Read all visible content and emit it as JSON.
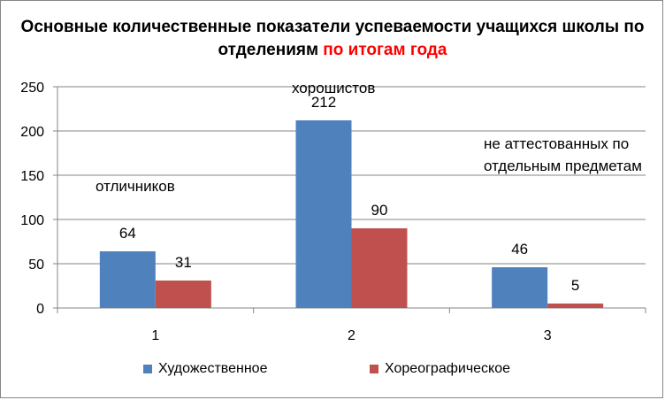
{
  "chart_data": {
    "type": "bar",
    "title_main": "Основные количественные показатели успеваемости учащихся школы по отделениям",
    "title_accent": "по итогам года",
    "categories": [
      "1",
      "2",
      "3"
    ],
    "series": [
      {
        "name": "Художественное",
        "values": [
          64,
          212,
          46
        ],
        "color": "#4f81bd"
      },
      {
        "name": "Хореографическое",
        "values": [
          31,
          90,
          5
        ],
        "color": "#c0504d"
      }
    ],
    "ylim": [
      0,
      250
    ],
    "yticks": [
      "0",
      "50",
      "100",
      "150",
      "200",
      "250"
    ],
    "grid": true,
    "legend": "bottom",
    "annotations": [
      "отличников",
      "хорошистов",
      "не аттестованных по отдельным предметам"
    ]
  }
}
